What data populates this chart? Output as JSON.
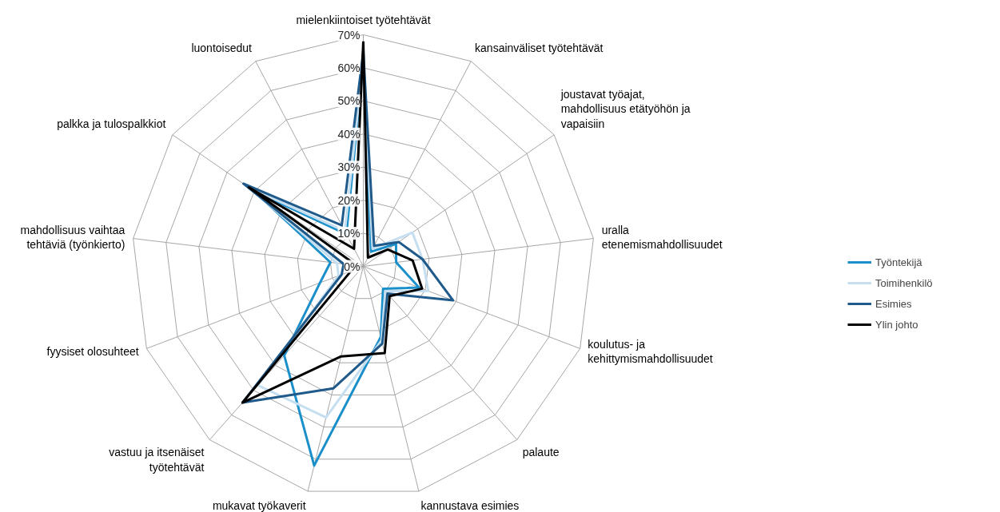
{
  "chart_data": {
    "type": "radar",
    "categories": [
      "mielenkiintoiset työtehtävät",
      "kansainväliset työtehtävät",
      "joustavat työajat, mahdollisuus etätyöhön ja vapaisiin",
      "uralla etenemismahdollisuudet",
      "koulutus- ja kehittymismahdollisuudet",
      "palaute",
      "kannustava esimies",
      "mukavat työkaverit",
      "vastuu ja itsenäiset työtehtävät",
      "fyysiset olosuhteet",
      "mahdollisuus vaihtaa tehtäviä (työnkierto)",
      "palkka ja tulospalkkiot",
      "luontoisedut"
    ],
    "series": [
      {
        "name": "Työntekijä",
        "color": "#1a8fc9",
        "values": [
          62,
          5,
          12,
          10,
          18,
          9,
          22,
          62,
          36,
          14,
          10,
          40,
          11
        ]
      },
      {
        "name": "Toimihenkilö",
        "color": "#c5dff0",
        "values": [
          62,
          6,
          18,
          18,
          21,
          10,
          23,
          47,
          48,
          8,
          8,
          42,
          12
        ]
      },
      {
        "name": "Esimies",
        "color": "#1f5a8a",
        "values": [
          65,
          7,
          13,
          18,
          29,
          11,
          24,
          38,
          55,
          7,
          6,
          44,
          14
        ]
      },
      {
        "name": "Ylin johto",
        "color": "#000000",
        "values": [
          68,
          3,
          9,
          15,
          19,
          12,
          27,
          28,
          55,
          4,
          2,
          42,
          6
        ]
      }
    ],
    "ylim": [
      0,
      70
    ],
    "yticks": [
      {
        "value": 0,
        "label": "0%"
      },
      {
        "value": 10,
        "label": "10%"
      },
      {
        "value": 20,
        "label": "20%"
      },
      {
        "value": 30,
        "label": "30%"
      },
      {
        "value": 40,
        "label": "40%"
      },
      {
        "value": 50,
        "label": "50%"
      },
      {
        "value": 60,
        "label": "60%"
      },
      {
        "value": 70,
        "label": "70%"
      }
    ],
    "grid": true,
    "legend": "right"
  }
}
